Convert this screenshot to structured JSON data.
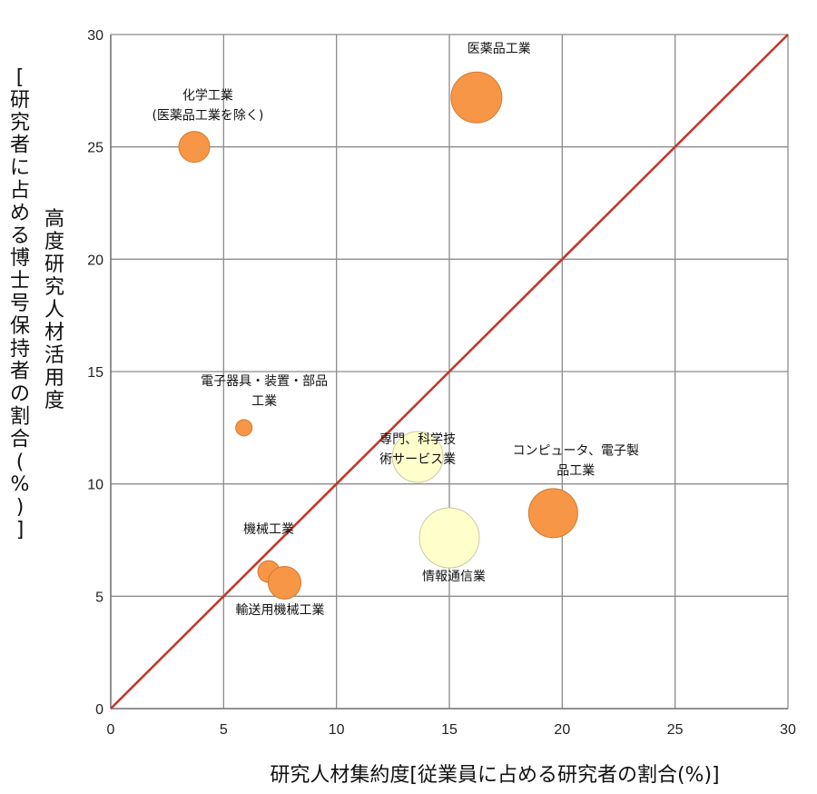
{
  "chart_data": {
    "type": "bubble",
    "xlabel": "研究人材集約度[従業員に占める研究者の割合(%)]",
    "ylabel_inner": "高度研究人材活用度",
    "ylabel_outer": "[研究者に占める博士号保持者の割合(%)]",
    "xlim": [
      0,
      30
    ],
    "ylim": [
      0,
      30
    ],
    "x_ticks": [
      "0",
      "5",
      "10",
      "15",
      "20",
      "25",
      "30"
    ],
    "y_ticks": [
      "0",
      "5",
      "10",
      "15",
      "20",
      "25",
      "30"
    ],
    "grid": true,
    "reference_line": {
      "from": [
        0,
        0
      ],
      "to": [
        30,
        30
      ],
      "color": "#c0392b"
    },
    "colors": {
      "manufacturing": "#f79646",
      "service": "#ffffcc"
    },
    "points": [
      {
        "name_lines": [
          "医薬品工業"
        ],
        "x": 16.2,
        "y": 27.2,
        "size": 28,
        "group": "manufacturing",
        "label_anchor": "middle",
        "label_dx": 1.0,
        "label_dy": 2.0
      },
      {
        "name_lines": [
          "化学工業",
          "(医薬品工業を除く)"
        ],
        "x": 3.7,
        "y": 25.0,
        "size": 17,
        "group": "manufacturing",
        "label_anchor": "middle",
        "label_dx": 0.6,
        "label_dy": 2.1
      },
      {
        "name_lines": [
          "電子器具・装置・部品",
          "工業"
        ],
        "x": 5.9,
        "y": 12.5,
        "size": 9,
        "group": "manufacturing",
        "label_anchor": "middle",
        "label_dx": 0.9,
        "label_dy": 1.9
      },
      {
        "name_lines": [
          "専門、科学技",
          "術サービス業"
        ],
        "x": 13.6,
        "y": 11.2,
        "size": 28,
        "group": "service",
        "label_anchor": "middle",
        "label_dx": 0.0,
        "label_dy": 0.6
      },
      {
        "name_lines": [
          "コンピュータ、電子製",
          "品工業"
        ],
        "x": 19.6,
        "y": 8.7,
        "size": 27,
        "group": "manufacturing",
        "label_anchor": "middle",
        "label_dx": 1.0,
        "label_dy": 2.6
      },
      {
        "name_lines": [
          "情報通信業"
        ],
        "x": 15.0,
        "y": 7.6,
        "size": 33,
        "group": "service",
        "label_anchor": "middle",
        "label_dx": 0.2,
        "label_dy": -1.9
      },
      {
        "name_lines": [
          "機械工業"
        ],
        "x": 7.0,
        "y": 6.1,
        "size": 12,
        "group": "manufacturing",
        "label_anchor": "middle",
        "label_dx": 0.0,
        "label_dy": 1.7
      },
      {
        "name_lines": [
          "輸送用機械工業"
        ],
        "x": 7.7,
        "y": 5.6,
        "size": 18,
        "group": "manufacturing",
        "label_anchor": "middle",
        "label_dx": -0.2,
        "label_dy": -1.4
      }
    ]
  }
}
